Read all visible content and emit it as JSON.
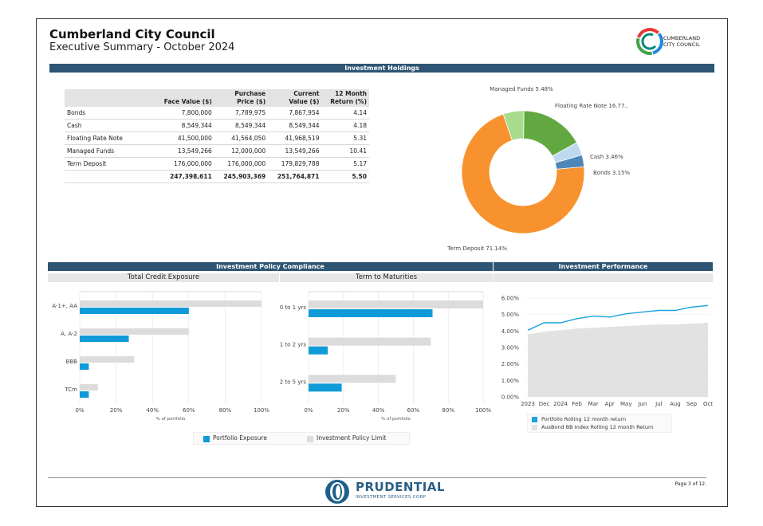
{
  "header": {
    "title": "Cumberland City Council",
    "subtitle": "Executive Summary - October 2024",
    "logo_text_line1": "CUMBERLAND",
    "logo_text_line2": "CITY COUNCIL"
  },
  "sections": {
    "holdings": "Investment Holdings",
    "compliance": "Investment Policy Compliance",
    "performance": "Investment Performance",
    "credit": "Total Credit Exposure",
    "maturities": "Term to Maturities"
  },
  "holdings_table": {
    "columns": [
      "",
      "Face Value ($)",
      "Purchase Price ($)",
      "Current Value ($)",
      "12 Month Return (%)"
    ],
    "column_lines": [
      [
        "Face Value ($)"
      ],
      [
        "Purchase",
        "Price ($)"
      ],
      [
        "Current",
        "Value ($)"
      ],
      [
        "12 Month",
        "Return (%)"
      ]
    ],
    "rows": [
      [
        "Bonds",
        "7,800,000",
        "7,789,975",
        "7,867,954",
        "4.14"
      ],
      [
        "Cash",
        "8,549,344",
        "8,549,344",
        "8,549,344",
        "4.18"
      ],
      [
        "Floating Rate Note",
        "41,500,000",
        "41,564,050",
        "41,968,519",
        "5.31"
      ],
      [
        "Managed Funds",
        "13,549,266",
        "12,000,000",
        "13,549,266",
        "10.41"
      ],
      [
        "Term Deposit",
        "176,000,000",
        "176,000,000",
        "179,829,788",
        "5.17"
      ]
    ],
    "total": [
      "",
      "247,398,611",
      "245,903,369",
      "251,764,871",
      "5.50"
    ]
  },
  "chart_data": [
    {
      "type": "pie",
      "variant": "donut",
      "labels": [
        "Bonds 3.15%",
        "Cash 3.46%",
        "Floating Rate Note 16.77..",
        "Managed Funds 5.48%",
        "Term Deposit 71.14%"
      ],
      "categories": [
        "Bonds",
        "Cash",
        "Floating Rate Note",
        "Managed Funds",
        "Term Deposit"
      ],
      "values": [
        3.15,
        3.46,
        16.77,
        5.48,
        71.14
      ],
      "colors": [
        "#4f86b8",
        "#bcd9f0",
        "#62a840",
        "#a7dc8c",
        "#f7922e"
      ]
    },
    {
      "type": "bar",
      "orientation": "horizontal",
      "title": "Total Credit Exposure",
      "categories": [
        "A-1+, AA",
        "A, A-2",
        "BBB",
        "TCm"
      ],
      "series": [
        {
          "name": "Portfolio Exposure",
          "values": [
            60,
            27,
            5,
            5
          ],
          "color": "#0f9ad8"
        },
        {
          "name": "Investment Policy Limit",
          "values": [
            100,
            60,
            30,
            10
          ],
          "color": "#dcdcdc"
        }
      ],
      "xlabel": "% of portfolio",
      "xticks": [
        "0%",
        "20%",
        "40%",
        "60%",
        "80%",
        "100%"
      ],
      "xlim": [
        0,
        100
      ]
    },
    {
      "type": "bar",
      "orientation": "horizontal",
      "title": "Term to Maturities",
      "categories": [
        "0 to 1 yrs",
        "1 to 2 yrs",
        "2 to 5 yrs"
      ],
      "series": [
        {
          "name": "Portfolio Exposure",
          "values": [
            71,
            11,
            19
          ],
          "color": "#0f9ad8"
        },
        {
          "name": "Investment Policy Limit",
          "values": [
            100,
            70,
            50
          ],
          "color": "#dcdcdc"
        }
      ],
      "xlabel": "% of portfolio",
      "xticks": [
        "0%",
        "20%",
        "40%",
        "60%",
        "80%",
        "100%"
      ],
      "xlim": [
        0,
        100
      ]
    },
    {
      "type": "line",
      "title": "Investment Performance",
      "x": [
        "2023",
        "Dec",
        "2024",
        "Feb",
        "Mar",
        "Apr",
        "May",
        "Jun",
        "Jul",
        "Aug",
        "Sep",
        "Oct"
      ],
      "series": [
        {
          "name": "Portfolio Rolling 12 month return",
          "type": "line",
          "values": [
            4.05,
            4.5,
            4.5,
            4.75,
            4.9,
            4.85,
            5.05,
            5.15,
            5.25,
            5.25,
            5.45,
            5.55
          ],
          "color": "#1aa3dd"
        },
        {
          "name": "AusBond BB Index Rolling 12 month Return",
          "type": "area",
          "values": [
            3.8,
            3.95,
            4.05,
            4.15,
            4.2,
            4.25,
            4.3,
            4.35,
            4.4,
            4.4,
            4.45,
            4.5
          ],
          "color": "#e2e2e2"
        }
      ],
      "yticks": [
        "0.00%",
        "1.00%",
        "2.00%",
        "3.00%",
        "4.00%",
        "5.00%",
        "6.00%"
      ],
      "ylim": [
        0,
        6
      ]
    }
  ],
  "legends": {
    "compliance": [
      "Portfolio Exposure",
      "Investment Policy Limit"
    ],
    "performance": [
      "Portfolio Rolling 12 month return",
      "AusBond BB Index Rolling 12 month Return"
    ]
  },
  "footer": {
    "brand": "PRUDENTIAL",
    "brand_sub": "INVESTMENT SERVICES CORP",
    "page": "Page 3 of 12."
  }
}
